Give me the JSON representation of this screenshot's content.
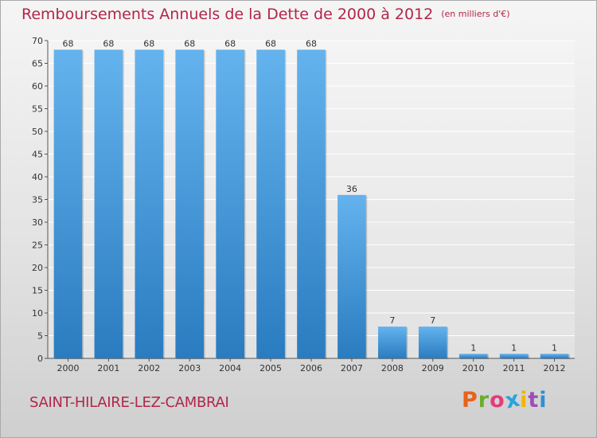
{
  "header": {
    "title": "Remboursements Annuels de la Dette de 2000 à 2012",
    "subtitle": "(en milliers d'€)"
  },
  "footer": {
    "commune": "SAINT-HILAIRE-LEZ-CAMBRAI",
    "logo_text": "Proxiti",
    "logo_colors": [
      "#e8621a",
      "#6cae2b",
      "#e83a7a",
      "#27a3dd",
      "#f5b400",
      "#9b4fb5",
      "#2f8fd0"
    ]
  },
  "colors": {
    "title": "#b2264a",
    "bar_top": "#64b3ee",
    "bar_bottom": "#2a7cc0",
    "axis": "#555555"
  },
  "chart_data": {
    "type": "bar",
    "categories": [
      "2000",
      "2001",
      "2002",
      "2003",
      "2004",
      "2005",
      "2006",
      "2007",
      "2008",
      "2009",
      "2010",
      "2011",
      "2012"
    ],
    "values": [
      68,
      68,
      68,
      68,
      68,
      68,
      68,
      36,
      7,
      7,
      1,
      1,
      1
    ],
    "data_labels": [
      "68",
      "68",
      "68",
      "68",
      "68",
      "68",
      "68",
      "36",
      "7",
      "7",
      "1",
      "1",
      "1"
    ],
    "ylim": [
      0,
      70
    ],
    "yticks": [
      0,
      5,
      10,
      15,
      20,
      25,
      30,
      35,
      40,
      45,
      50,
      55,
      60,
      65,
      70
    ],
    "grid": true,
    "xlabel": "",
    "ylabel": ""
  }
}
